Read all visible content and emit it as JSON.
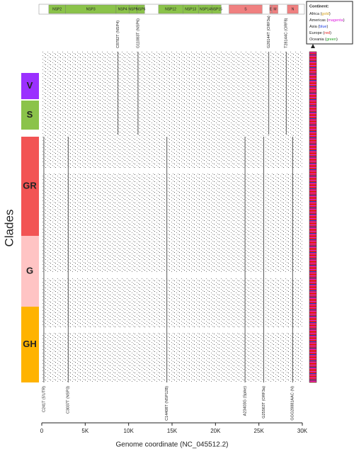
{
  "chart_data": {
    "type": "genome-map",
    "xlabel": "Genome coordinate (NC_045512.2)",
    "ylabel": "Clades",
    "xlim": [
      0,
      30000
    ],
    "xticks": [
      0,
      {
        "value": 5000,
        "label": "5K"
      },
      {
        "value": 10000,
        "label": "10K"
      },
      {
        "value": 15000,
        "label": "15K"
      },
      {
        "value": 20000,
        "label": "20K"
      },
      {
        "value": 25000,
        "label": "25K"
      },
      {
        "value": 30000,
        "label": "30K"
      }
    ],
    "genes": [
      {
        "name": "NSP2",
        "start": 806,
        "end": 2719,
        "color": "#8bc34a"
      },
      {
        "name": "NSP3",
        "start": 2720,
        "end": 8554,
        "color": "#8bc34a"
      },
      {
        "name": "NSP4",
        "start": 8555,
        "end": 10054,
        "color": "#8bc34a"
      },
      {
        "name": "NSP5",
        "start": 10055,
        "end": 10972,
        "color": "#8bc34a"
      },
      {
        "name": "NSP6",
        "start": 10973,
        "end": 11842,
        "color": "#8bc34a"
      },
      {
        "name": "NSP12",
        "start": 13442,
        "end": 16236,
        "color": "#8bc34a"
      },
      {
        "name": "NSP13",
        "start": 16237,
        "end": 18039,
        "color": "#8bc34a"
      },
      {
        "name": "NSP14",
        "start": 18040,
        "end": 19620,
        "color": "#8bc34a"
      },
      {
        "name": "NSP15",
        "start": 19621,
        "end": 20658,
        "color": "#8bc34a"
      },
      {
        "name": "S",
        "start": 21563,
        "end": 25384,
        "color": "#f08080"
      },
      {
        "name": "E",
        "start": 26245,
        "end": 26472,
        "color": "#f08080"
      },
      {
        "name": "M",
        "start": 26523,
        "end": 27191,
        "color": "#f08080"
      },
      {
        "name": "N",
        "start": 28274,
        "end": 29533,
        "color": "#f08080"
      }
    ],
    "top_mutations": [
      {
        "label": "C8782T (NSP4)",
        "position": 8782
      },
      {
        "label": "G11083T (NSP6)",
        "position": 11083
      },
      {
        "label": "G26144T (ORF3a)",
        "position": 26144
      },
      {
        "label": "T28144C (ORF8)",
        "position": 28144
      }
    ],
    "bottom_mutations": [
      {
        "label": "C241T (5'UTR)",
        "position": 241
      },
      {
        "label": "C3037T (NSP3)",
        "position": 3037
      },
      {
        "label": "C14408T (NSP12B)",
        "position": 14408
      },
      {
        "label": "A23403G (Spike)",
        "position": 23403
      },
      {
        "label": "G25563T (ORF3a)",
        "position": 25563
      },
      {
        "label": "GGG28881AAC (N)",
        "position": 28881
      }
    ],
    "clades": [
      {
        "name": "V",
        "color": "#9b30ff"
      },
      {
        "name": "S",
        "color": "#8bc34a"
      },
      {
        "name": "GR",
        "color": "#f25454"
      },
      {
        "name": "G",
        "color": "#ffc4c4"
      },
      {
        "name": "GH",
        "color": "#ffb300"
      }
    ],
    "legend": {
      "title": "Continent:",
      "entries": [
        {
          "prefix": "Africa (",
          "word": "gold",
          "suffix": ")",
          "color": "#d4a017"
        },
        {
          "prefix": "Americas (",
          "word": "magenta",
          "suffix": ")",
          "color": "#e020e0"
        },
        {
          "prefix": "Asia (",
          "word": "blue",
          "suffix": ")",
          "color": "#2040e0"
        },
        {
          "prefix": "Europe (",
          "word": "red",
          "suffix": ")",
          "color": "#e02020"
        },
        {
          "prefix": "Oceania (",
          "word": "green",
          "suffix": ")",
          "color": "#20a020"
        }
      ]
    }
  }
}
